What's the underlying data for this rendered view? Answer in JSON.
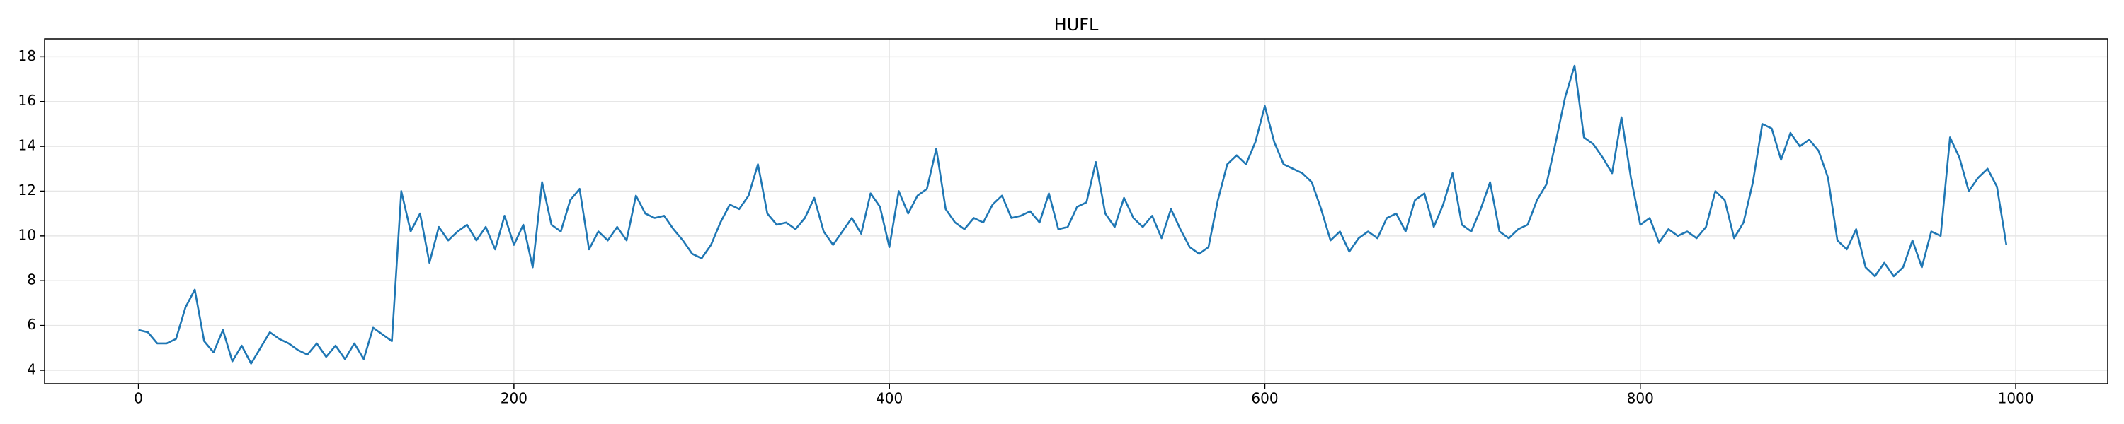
{
  "chart_data": {
    "type": "line",
    "title": "HUFL",
    "x": [
      0,
      5,
      10,
      15,
      20,
      25,
      30,
      35,
      40,
      45,
      50,
      55,
      60,
      65,
      70,
      75,
      80,
      85,
      90,
      95,
      100,
      105,
      110,
      115,
      120,
      125,
      130,
      135,
      140,
      145,
      150,
      155,
      160,
      165,
      170,
      175,
      180,
      185,
      190,
      195,
      200,
      205,
      210,
      215,
      220,
      225,
      230,
      235,
      240,
      245,
      250,
      255,
      260,
      265,
      270,
      275,
      280,
      285,
      290,
      295,
      300,
      305,
      310,
      315,
      320,
      325,
      330,
      335,
      340,
      345,
      350,
      355,
      360,
      365,
      370,
      375,
      380,
      385,
      390,
      395,
      400,
      405,
      410,
      415,
      420,
      425,
      430,
      435,
      440,
      445,
      450,
      455,
      460,
      465,
      470,
      475,
      480,
      485,
      490,
      495,
      500,
      505,
      510,
      515,
      520,
      525,
      530,
      535,
      540,
      545,
      550,
      555,
      560,
      565,
      570,
      575,
      580,
      585,
      590,
      595,
      600,
      605,
      610,
      615,
      620,
      625,
      630,
      635,
      640,
      645,
      650,
      655,
      660,
      665,
      670,
      675,
      680,
      685,
      690,
      695,
      700,
      705,
      710,
      715,
      720,
      725,
      730,
      735,
      740,
      745,
      750,
      755,
      760,
      765,
      770,
      775,
      780,
      785,
      790,
      795,
      800,
      805,
      810,
      815,
      820,
      825,
      830,
      835,
      840,
      845,
      850,
      855,
      860,
      865,
      870,
      875,
      880,
      885,
      890,
      895,
      900,
      905,
      910,
      915,
      920,
      925,
      930,
      935,
      940,
      945,
      950,
      955,
      960,
      965,
      970,
      975,
      980,
      985,
      990,
      995
    ],
    "series": [
      {
        "name": "HUFL",
        "color": "#1f77b4",
        "values": [
          5.8,
          5.7,
          5.2,
          5.2,
          5.4,
          6.8,
          7.6,
          5.3,
          4.8,
          5.8,
          4.4,
          5.1,
          4.3,
          5.0,
          5.7,
          5.4,
          5.2,
          4.9,
          4.7,
          5.2,
          4.6,
          5.1,
          4.5,
          5.2,
          4.5,
          5.9,
          5.6,
          5.3,
          12.0,
          10.2,
          11.0,
          8.8,
          10.4,
          9.8,
          10.2,
          10.5,
          9.8,
          10.4,
          9.4,
          10.9,
          9.6,
          10.5,
          8.6,
          12.4,
          10.5,
          10.2,
          11.6,
          12.1,
          9.4,
          10.2,
          9.8,
          10.4,
          9.8,
          11.8,
          11.0,
          10.8,
          10.9,
          10.3,
          9.8,
          9.2,
          9.0,
          9.6,
          10.6,
          11.4,
          11.2,
          11.8,
          13.2,
          11.0,
          10.5,
          10.6,
          10.3,
          10.8,
          11.7,
          10.2,
          9.6,
          10.2,
          10.8,
          10.1,
          11.9,
          11.3,
          9.5,
          12.0,
          11.0,
          11.8,
          12.1,
          13.9,
          11.2,
          10.6,
          10.3,
          10.8,
          10.6,
          11.4,
          11.8,
          10.8,
          10.9,
          11.1,
          10.6,
          11.9,
          10.3,
          10.4,
          11.3,
          11.5,
          13.3,
          11.0,
          10.4,
          11.7,
          10.8,
          10.4,
          10.9,
          9.9,
          11.2,
          10.3,
          9.5,
          9.2,
          9.5,
          11.6,
          13.2,
          13.6,
          13.2,
          14.2,
          15.8,
          14.2,
          13.2,
          13.0,
          12.8,
          12.4,
          11.2,
          9.8,
          10.2,
          9.3,
          9.9,
          10.2,
          9.9,
          10.8,
          11.0,
          10.2,
          11.6,
          11.9,
          10.4,
          11.4,
          12.8,
          10.5,
          10.2,
          11.2,
          12.4,
          10.2,
          9.9,
          10.3,
          10.5,
          11.6,
          12.3,
          14.2,
          16.2,
          17.6,
          14.4,
          14.1,
          13.5,
          12.8,
          15.3,
          12.6,
          10.5,
          10.8,
          9.7,
          10.3,
          10.0,
          10.2,
          9.9,
          10.4,
          12.0,
          11.6,
          9.9,
          10.6,
          12.4,
          15.0,
          14.8,
          13.4,
          14.6,
          14.0,
          14.3,
          13.8,
          12.6,
          9.8,
          9.4,
          10.3,
          8.6,
          8.2,
          8.8,
          8.2,
          8.6,
          9.8,
          8.6,
          10.2,
          10.0,
          14.4,
          13.5,
          12.0,
          12.6,
          13.0,
          12.2,
          9.6
        ]
      }
    ],
    "xlim": [
      -50,
      1049
    ],
    "ylim": [
      3.4,
      18.8
    ],
    "xticks": [
      0,
      200,
      400,
      600,
      800,
      1000
    ],
    "yticks": [
      4,
      6,
      8,
      10,
      12,
      14,
      16,
      18
    ],
    "grid": true
  }
}
